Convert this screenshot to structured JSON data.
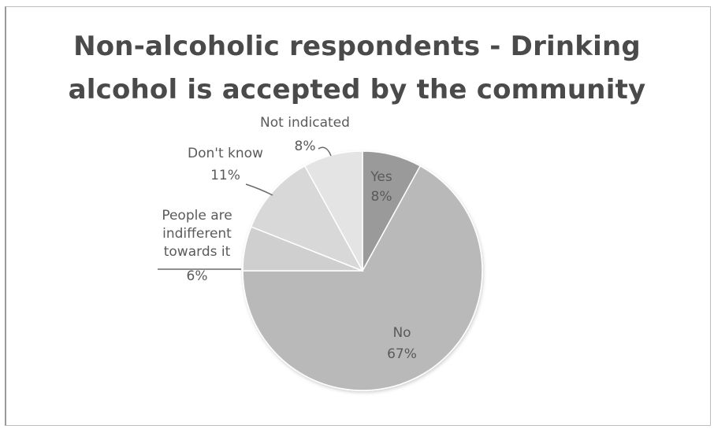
{
  "chart_data": {
    "type": "pie",
    "title": "Non-alcoholic respondents - Drinking alcohol is accepted by the community",
    "title_lines": [
      "Non-alcoholic respondents - Drinking",
      "alcohol is accepted by the community"
    ],
    "slices": [
      {
        "label": "Yes",
        "label_lines": [
          "Yes"
        ],
        "value": 8,
        "value_label": "8%",
        "color": "#9a9a9a"
      },
      {
        "label": "No",
        "label_lines": [
          "No"
        ],
        "value": 67,
        "value_label": "67%",
        "color": "#b9b9b9"
      },
      {
        "label": "People are indifferent towards it",
        "label_lines": [
          "People are",
          "indifferent",
          "towards it"
        ],
        "value": 6,
        "value_label": "6%",
        "color": "#cfcfcf"
      },
      {
        "label": "Don't know",
        "label_lines": [
          "Don't know"
        ],
        "value": 11,
        "value_label": "11%",
        "color": "#d8d8d8"
      },
      {
        "label": "Not indicated",
        "label_lines": [
          "Not indicated"
        ],
        "value": 8,
        "value_label": "8%",
        "color": "#e4e4e4"
      }
    ],
    "start": "12 o'clock",
    "direction": "clockwise",
    "legend": "none",
    "data_labels": "category and percent"
  }
}
